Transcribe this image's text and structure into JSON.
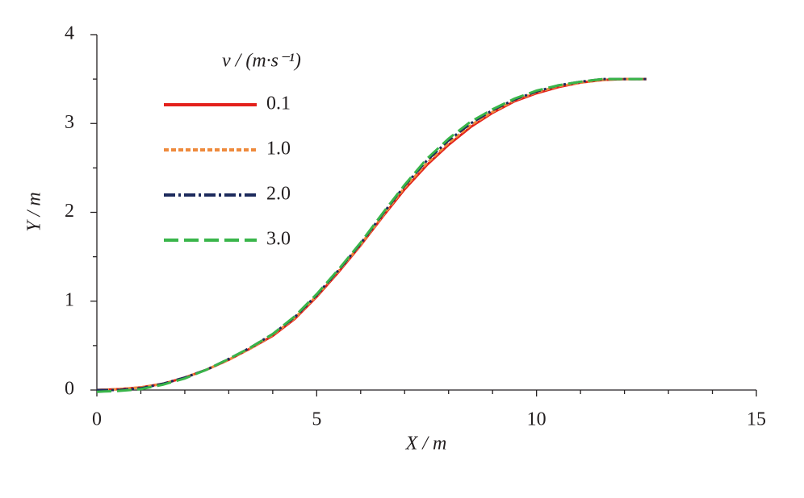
{
  "chart_data": {
    "type": "line",
    "x_label": "X / m",
    "y_label": "Y / m",
    "legend_title": "v / (m·s⁻¹)",
    "x": [
      0,
      0.5,
      1,
      1.5,
      2,
      2.5,
      3,
      3.5,
      4,
      4.5,
      5,
      5.5,
      6,
      6.5,
      7,
      7.5,
      8,
      8.5,
      9,
      9.5,
      10,
      10.5,
      11,
      11.5,
      12,
      12.5
    ],
    "series": [
      {
        "name": "0.1",
        "color": "#e3201b",
        "style": "solid",
        "values": [
          0,
          0.01,
          0.03,
          0.07,
          0.14,
          0.23,
          0.34,
          0.47,
          0.61,
          0.8,
          1.05,
          1.33,
          1.63,
          1.95,
          2.26,
          2.53,
          2.76,
          2.96,
          3.12,
          3.25,
          3.34,
          3.41,
          3.46,
          3.49,
          3.5,
          3.5
        ]
      },
      {
        "name": "1.0",
        "color": "#ee8a3c",
        "style": "dotted",
        "values": [
          0,
          0.01,
          0.03,
          0.07,
          0.14,
          0.23,
          0.34,
          0.47,
          0.62,
          0.81,
          1.06,
          1.34,
          1.64,
          1.96,
          2.28,
          2.55,
          2.78,
          2.98,
          3.13,
          3.26,
          3.35,
          3.42,
          3.46,
          3.49,
          3.5,
          3.5
        ]
      },
      {
        "name": "2.0",
        "color": "#1c2a5c",
        "style": "dashdot",
        "values": [
          0,
          0,
          0.02,
          0.07,
          0.14,
          0.23,
          0.35,
          0.48,
          0.63,
          0.82,
          1.07,
          1.35,
          1.65,
          1.98,
          2.3,
          2.58,
          2.81,
          3.0,
          3.15,
          3.27,
          3.36,
          3.43,
          3.47,
          3.5,
          3.5,
          3.5
        ]
      },
      {
        "name": "3.0",
        "color": "#39b54a",
        "style": "dashed",
        "values": [
          -0.02,
          -0.01,
          0.01,
          0.06,
          0.13,
          0.23,
          0.35,
          0.48,
          0.63,
          0.83,
          1.08,
          1.36,
          1.66,
          1.99,
          2.31,
          2.6,
          2.83,
          3.02,
          3.16,
          3.28,
          3.37,
          3.43,
          3.47,
          3.5,
          3.5,
          3.5
        ]
      }
    ],
    "xlim": [
      0,
      15
    ],
    "ylim": [
      0,
      4
    ],
    "xticks": [
      0,
      5,
      10,
      15
    ],
    "yticks": [
      0,
      1,
      2,
      3,
      4
    ],
    "xminorticks": [
      1,
      2,
      3,
      4,
      6,
      7,
      8,
      9,
      11,
      12,
      13,
      14
    ],
    "yminorticks": [
      0.5,
      1.5,
      2.5,
      3.5
    ],
    "grid": false
  }
}
